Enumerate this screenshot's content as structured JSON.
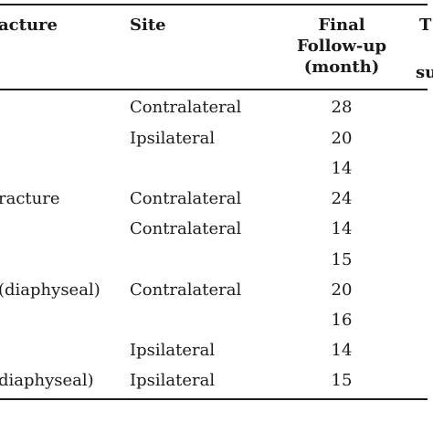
{
  "table": {
    "headers": {
      "fracture": "acture",
      "site": "Site",
      "final_followup": [
        "Final",
        "Follow-up",
        "(month)"
      ],
      "next_col_top": "T",
      "next_col_bottom": "su"
    },
    "rows": [
      {
        "fracture": "",
        "site": "Contralateral",
        "final_followup": "28"
      },
      {
        "fracture": "",
        "site": "Ipsilateral",
        "final_followup": "20"
      },
      {
        "fracture": "",
        "site": "",
        "final_followup": "14"
      },
      {
        "fracture": "racture",
        "site": "Contralateral",
        "final_followup": "24"
      },
      {
        "fracture": "",
        "site": "Contralateral",
        "final_followup": "14"
      },
      {
        "fracture": "",
        "site": "",
        "final_followup": "15"
      },
      {
        "fracture": "(diaphyseal)",
        "site": "Contralateral",
        "final_followup": "20"
      },
      {
        "fracture": "",
        "site": "",
        "final_followup": "16"
      },
      {
        "fracture": "",
        "site": "Ipsilateral",
        "final_followup": "14"
      },
      {
        "fracture": "diaphyseal)",
        "site": "Ipsilateral",
        "final_followup": "15"
      }
    ]
  }
}
